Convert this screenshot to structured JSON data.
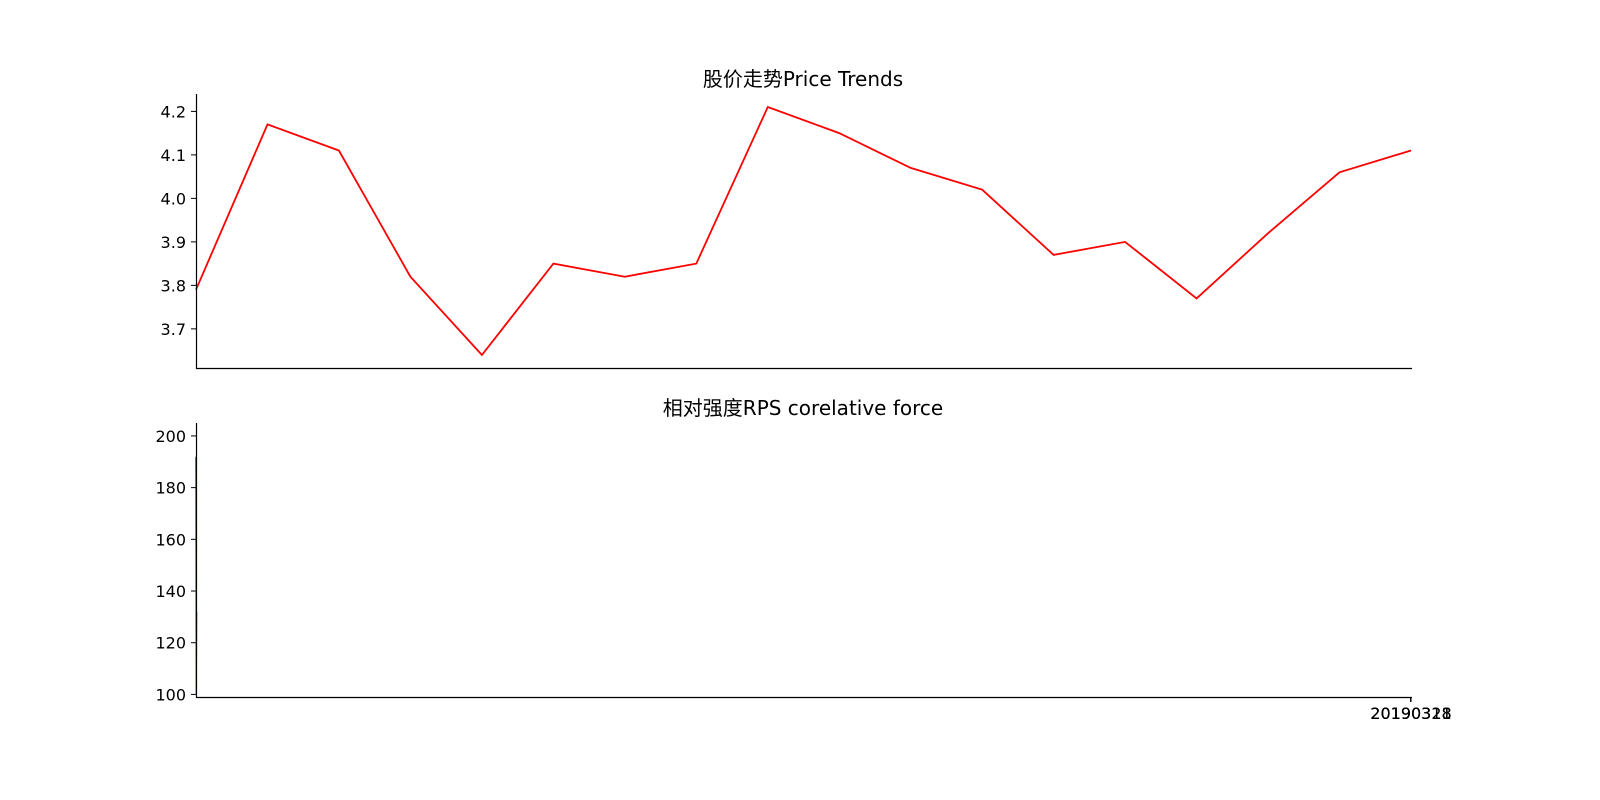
{
  "chart_data": [
    {
      "type": "line",
      "title": "股价走势Price Trends",
      "xlabel": "",
      "ylabel": "",
      "ylim": [
        3.61,
        4.24
      ],
      "yticks": [
        3.7,
        3.8,
        3.9,
        4.0,
        4.1,
        4.2
      ],
      "ytick_labels": [
        "3.7",
        "3.8",
        "3.9",
        "4.0",
        "4.1",
        "4.2"
      ],
      "grid": false,
      "series": [
        {
          "color": "#ff0000",
          "values": [
            3.79,
            4.17,
            4.11,
            3.82,
            3.64,
            3.85,
            3.82,
            3.85,
            4.21,
            4.15,
            4.07,
            4.02,
            3.87,
            3.9,
            3.77,
            3.92,
            4.06,
            4.11
          ]
        }
      ]
    },
    {
      "type": "line",
      "title": "相对强度RPS corelative force",
      "xlabel": "",
      "ylabel": "",
      "ylim": [
        99,
        205
      ],
      "yticks": [
        100,
        120,
        140,
        160,
        180,
        200
      ],
      "ytick_labels": [
        "100",
        "120",
        "140",
        "160",
        "180",
        "200"
      ],
      "grid": false,
      "xtick_labels": [
        "20190311",
        "20190318",
        "20190328"
      ],
      "series": [
        {
          "color": "#00008b",
          "values": [
            192,
            100,
            132
          ]
        }
      ]
    }
  ]
}
